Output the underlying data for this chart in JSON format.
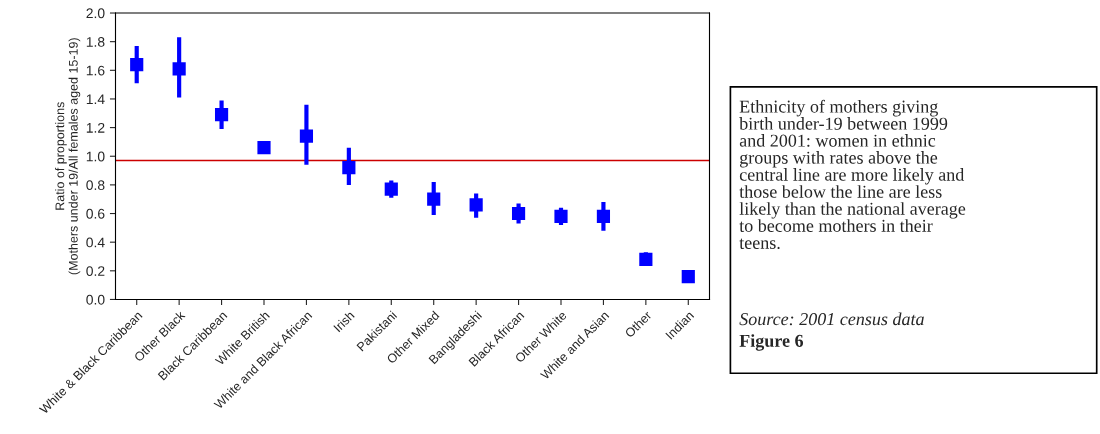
{
  "chart_data": {
    "type": "scatter",
    "ylabel": "Ratio of proportions\n(Mothers under 19/All females aged 15-19)",
    "categories": [
      "White & Black Caribbean",
      "Other Black",
      "Black Caribbean",
      "White British",
      "White and Black African",
      "Irish",
      "Pakistani",
      "Other Mixed",
      "Bangladeshi",
      "Black African",
      "Other White",
      "White and Asian",
      "Other",
      "Indian"
    ],
    "values": [
      1.64,
      1.61,
      1.29,
      1.06,
      1.14,
      0.92,
      0.77,
      0.7,
      0.66,
      0.6,
      0.58,
      0.58,
      0.28,
      0.16
    ],
    "errors": [
      [
        1.51,
        1.77
      ],
      [
        1.41,
        1.83
      ],
      [
        1.19,
        1.39
      ],
      null,
      [
        0.94,
        1.36
      ],
      [
        0.8,
        1.06
      ],
      [
        0.71,
        0.83
      ],
      [
        0.59,
        0.82
      ],
      [
        0.57,
        0.74
      ],
      [
        0.53,
        0.67
      ],
      [
        0.52,
        0.64
      ],
      [
        0.48,
        0.68
      ],
      [
        0.24,
        0.33
      ],
      null
    ],
    "color": "#0000ff",
    "marker": "square",
    "ylim": [
      0,
      2.0
    ],
    "yticks": [
      {
        "value": 0,
        "label": "0.0"
      },
      0.2,
      0.4,
      0.6,
      0.8,
      {
        "value": 1,
        "label": "1.0"
      },
      1.2,
      1.4,
      1.6,
      1.8,
      {
        "value": 2,
        "label": "2.0"
      }
    ],
    "ref_lines": [
      {
        "axis": "y",
        "value": 0.97,
        "color": "#cc0000"
      }
    ],
    "grid": false,
    "legend": false,
    "annotations": [
      "Ethnicity of mothers giving\nbirth under-19 between 1999\nand 2001: women in ethnic\ngroups with rates above the\ncentral line are more likely and\nthose below the line are less\nlikely than the national average\nto become mothers in their\nteens.",
      "Source: 2001 census data",
      "Figure 6"
    ]
  }
}
